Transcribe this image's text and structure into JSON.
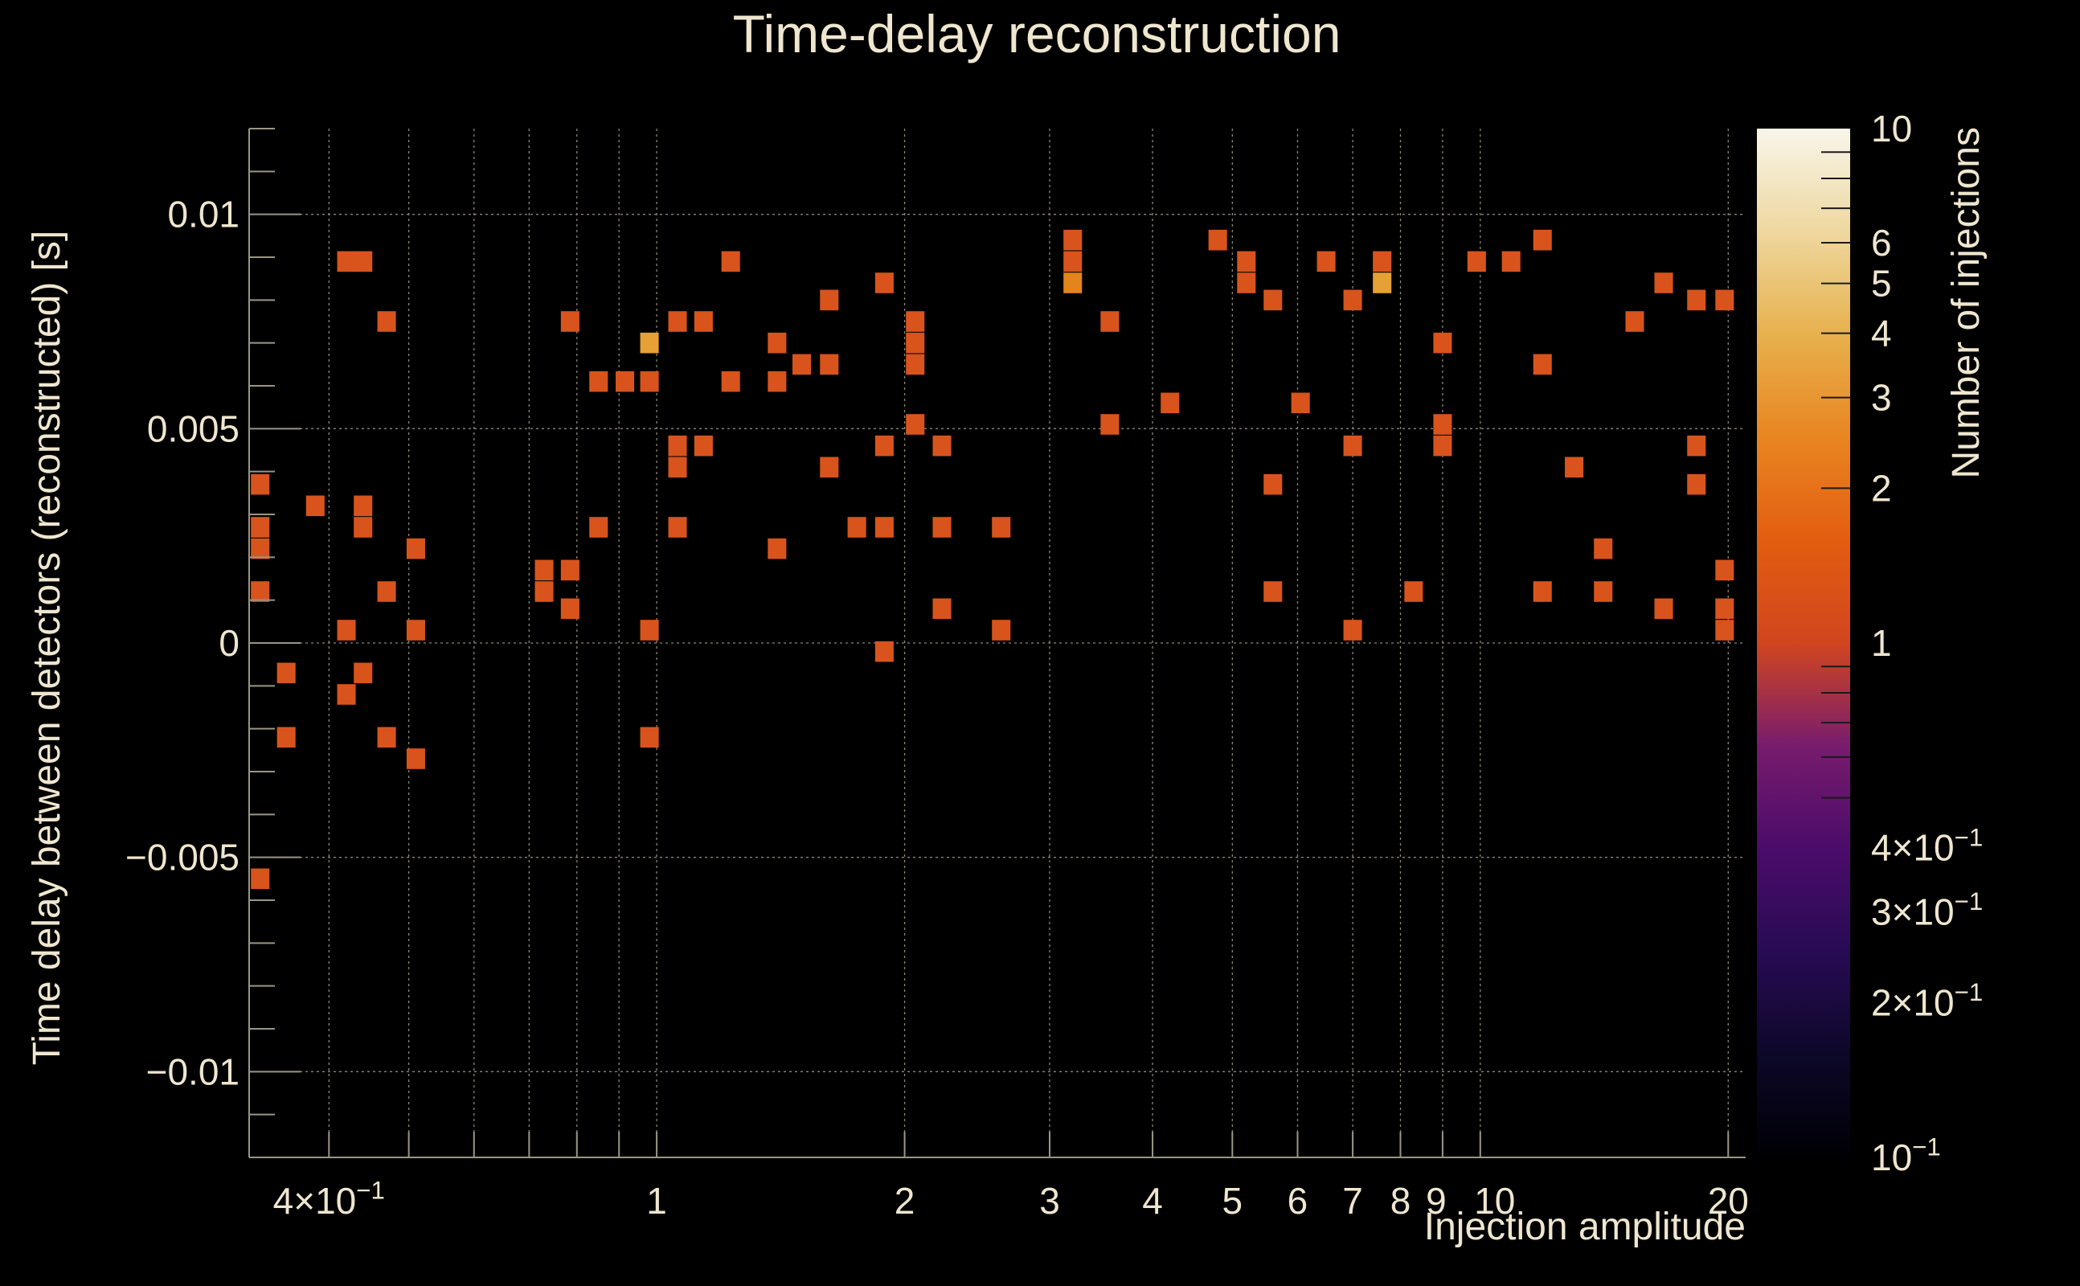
{
  "chart_data": {
    "type": "heatmap",
    "title": "Time-delay reconstruction",
    "xlabel": "Injection amplitude",
    "ylabel": "Time delay between detectors (reconstructed) [s]",
    "zlabel": "Number of injections",
    "x_scale": "log",
    "xlim": [
      0.32,
      21
    ],
    "ylim": [
      -0.012,
      0.012
    ],
    "zlim": [
      0.1,
      10
    ],
    "z_scale": "log",
    "x_ticks": [
      {
        "value": 0.4,
        "label": "4×10",
        "exp": "−1"
      },
      {
        "value": 1,
        "label": "1"
      },
      {
        "value": 2,
        "label": "2"
      },
      {
        "value": 3,
        "label": "3"
      },
      {
        "value": 4,
        "label": "4"
      },
      {
        "value": 5,
        "label": "5"
      },
      {
        "value": 6,
        "label": "6"
      },
      {
        "value": 7,
        "label": "7"
      },
      {
        "value": 8,
        "label": "8"
      },
      {
        "value": 9,
        "label": "9"
      },
      {
        "value": 10,
        "label": "10"
      },
      {
        "value": 20,
        "label": "20"
      }
    ],
    "y_ticks": [
      {
        "value": 0.01,
        "label": "0.01"
      },
      {
        "value": 0.005,
        "label": "0.005"
      },
      {
        "value": 0,
        "label": "0"
      },
      {
        "value": -0.005,
        "label": "−0.005"
      },
      {
        "value": -0.01,
        "label": "−0.01"
      }
    ],
    "z_ticks": [
      {
        "value": 10,
        "label": "10"
      },
      {
        "value": 6,
        "label": "6"
      },
      {
        "value": 5,
        "label": "5"
      },
      {
        "value": 4,
        "label": "4"
      },
      {
        "value": 3,
        "label": "3"
      },
      {
        "value": 2,
        "label": "2"
      },
      {
        "value": 1,
        "label": "1"
      },
      {
        "value": 0.4,
        "label": "4×10",
        "exp": "−1"
      },
      {
        "value": 0.3,
        "label": "3×10",
        "exp": "−1"
      },
      {
        "value": 0.2,
        "label": "2×10",
        "exp": "−1"
      },
      {
        "value": 0.1,
        "label": "10",
        "exp": "−1"
      }
    ],
    "grid": true,
    "bin_width_log": 0.0225,
    "bin_height": 0.00048,
    "cells": [
      [
        0.33,
        0.0037,
        1
      ],
      [
        0.33,
        0.0027,
        1
      ],
      [
        0.33,
        0.0022,
        1
      ],
      [
        0.33,
        0.0012,
        1
      ],
      [
        0.33,
        -0.0055,
        1
      ],
      [
        0.355,
        -0.0007,
        1
      ],
      [
        0.355,
        -0.0022,
        1
      ],
      [
        0.385,
        0.0032,
        1
      ],
      [
        0.42,
        0.0089,
        1
      ],
      [
        0.42,
        0.0003,
        1
      ],
      [
        0.42,
        -0.0012,
        1
      ],
      [
        0.44,
        0.0089,
        1
      ],
      [
        0.44,
        0.0032,
        1
      ],
      [
        0.44,
        0.0027,
        1
      ],
      [
        0.44,
        -0.0007,
        1
      ],
      [
        0.47,
        0.0075,
        1
      ],
      [
        0.47,
        0.0012,
        1
      ],
      [
        0.47,
        -0.0022,
        1
      ],
      [
        0.51,
        0.0022,
        1
      ],
      [
        0.51,
        0.0003,
        1
      ],
      [
        0.51,
        -0.0027,
        1
      ],
      [
        0.73,
        0.0017,
        1
      ],
      [
        0.73,
        0.0012,
        1
      ],
      [
        0.785,
        0.0075,
        1
      ],
      [
        0.785,
        0.0017,
        1
      ],
      [
        0.785,
        0.0008,
        1
      ],
      [
        0.85,
        0.0061,
        1
      ],
      [
        0.85,
        0.0027,
        1
      ],
      [
        0.915,
        0.0061,
        1
      ],
      [
        0.98,
        0.007,
        3
      ],
      [
        0.98,
        0.0061,
        1
      ],
      [
        0.98,
        0.0003,
        1
      ],
      [
        0.98,
        -0.0022,
        1
      ],
      [
        1.06,
        0.0075,
        1
      ],
      [
        1.06,
        0.0046,
        1
      ],
      [
        1.06,
        0.0041,
        1
      ],
      [
        1.06,
        0.0027,
        1
      ],
      [
        1.14,
        0.0075,
        1
      ],
      [
        1.14,
        0.0046,
        1
      ],
      [
        1.23,
        0.0061,
        1
      ],
      [
        1.23,
        0.0089,
        1
      ],
      [
        1.4,
        0.007,
        1
      ],
      [
        1.4,
        0.0061,
        1
      ],
      [
        1.4,
        0.0022,
        1
      ],
      [
        1.5,
        0.0065,
        1
      ],
      [
        1.62,
        0.008,
        1
      ],
      [
        1.62,
        0.0065,
        1
      ],
      [
        1.62,
        0.0041,
        1
      ],
      [
        1.75,
        0.0027,
        1
      ],
      [
        1.89,
        0.0027,
        1
      ],
      [
        1.89,
        0.0084,
        1
      ],
      [
        1.89,
        0.0046,
        1
      ],
      [
        1.89,
        -0.0002,
        1
      ],
      [
        2.06,
        0.0075,
        1
      ],
      [
        2.06,
        0.007,
        1
      ],
      [
        2.06,
        0.0065,
        1
      ],
      [
        2.06,
        0.0051,
        1
      ],
      [
        2.22,
        0.0046,
        1
      ],
      [
        2.22,
        0.0027,
        1
      ],
      [
        2.22,
        0.0008,
        1
      ],
      [
        2.62,
        0.0027,
        1
      ],
      [
        2.62,
        0.0003,
        1
      ],
      [
        3.2,
        0.0094,
        1
      ],
      [
        3.2,
        0.0089,
        1
      ],
      [
        3.2,
        0.0084,
        2
      ],
      [
        3.55,
        0.0075,
        1
      ],
      [
        3.55,
        0.0051,
        1
      ],
      [
        4.2,
        0.0056,
        1
      ],
      [
        4.8,
        0.0094,
        1
      ],
      [
        5.2,
        0.0089,
        1
      ],
      [
        5.2,
        0.0084,
        1
      ],
      [
        5.6,
        0.008,
        1
      ],
      [
        5.6,
        0.0037,
        1
      ],
      [
        5.6,
        0.0012,
        1
      ],
      [
        6.05,
        0.0056,
        1
      ],
      [
        6.5,
        0.0089,
        1
      ],
      [
        7.0,
        0.008,
        1
      ],
      [
        7.0,
        0.0046,
        1
      ],
      [
        7.0,
        0.0003,
        1
      ],
      [
        7.6,
        0.0089,
        1
      ],
      [
        7.6,
        0.0084,
        3
      ],
      [
        8.3,
        0.0012,
        1
      ],
      [
        9.0,
        0.007,
        1
      ],
      [
        9.0,
        0.0051,
        1
      ],
      [
        9.0,
        0.0046,
        1
      ],
      [
        9.9,
        0.0089,
        1
      ],
      [
        10.9,
        0.0089,
        1
      ],
      [
        11.9,
        0.0094,
        1
      ],
      [
        11.9,
        0.0065,
        1
      ],
      [
        11.9,
        0.0012,
        1
      ],
      [
        13.0,
        0.0041,
        1
      ],
      [
        14.1,
        0.0022,
        1
      ],
      [
        14.1,
        0.0012,
        1
      ],
      [
        15.4,
        0.0075,
        1
      ],
      [
        16.7,
        0.0084,
        1
      ],
      [
        16.7,
        0.0008,
        1
      ],
      [
        18.3,
        0.008,
        1
      ],
      [
        18.3,
        0.0046,
        1
      ],
      [
        18.3,
        0.0037,
        1
      ],
      [
        19.8,
        0.008,
        1
      ],
      [
        19.8,
        0.0017,
        1
      ],
      [
        19.8,
        0.0008,
        1
      ],
      [
        19.8,
        0.0003,
        1
      ]
    ]
  }
}
